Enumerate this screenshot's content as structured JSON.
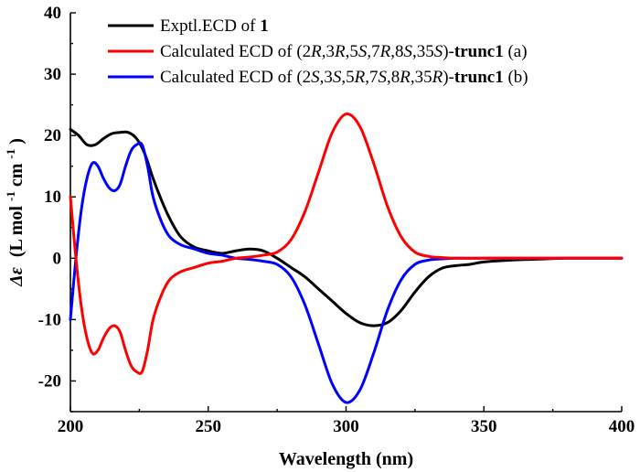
{
  "chart_data": {
    "type": "line",
    "title": "",
    "xlabel": "Wavelength (nm)",
    "ylabel": {
      "symbol": "Δε",
      "unit_prefix": "(L mol",
      "unit_sup1": "-1",
      "unit_mid": "cm",
      "unit_sup2": "-1",
      "unit_suffix": ")"
    },
    "xlim": [
      200,
      400
    ],
    "ylim": [
      -25,
      40
    ],
    "xticks": [
      200,
      250,
      300,
      350,
      400
    ],
    "yticks": [
      -20,
      -10,
      0,
      10,
      20,
      30,
      40
    ],
    "grid": false,
    "legend_position": "top-left",
    "series": [
      {
        "name": "Exptl.ECD of 1",
        "legend": {
          "text": "Exptl.ECD of ",
          "bold": "1"
        },
        "color": "#000000",
        "x": [
          200,
          203,
          206,
          209,
          212,
          215,
          218,
          221,
          224,
          227,
          230,
          233,
          236,
          240,
          245,
          250,
          255,
          260,
          265,
          270,
          275,
          280,
          285,
          290,
          295,
          300,
          305,
          310,
          315,
          320,
          325,
          330,
          335,
          340,
          345,
          350,
          360,
          370,
          380,
          390,
          400
        ],
        "y": [
          21,
          20,
          18.5,
          18.5,
          19.5,
          20.3,
          20.5,
          20.5,
          19.5,
          17,
          13,
          9.5,
          6.5,
          3.5,
          1.8,
          1.2,
          0.8,
          1.2,
          1.5,
          1.2,
          0,
          -1.5,
          -3,
          -5,
          -7,
          -9,
          -10.5,
          -11,
          -10.5,
          -8.5,
          -5.5,
          -3,
          -1.6,
          -1.2,
          -1,
          -0.6,
          -0.3,
          -0.15,
          0,
          0,
          0
        ]
      },
      {
        "name": "Calculated ECD of (2R,3R,5S,7R,8S,35S)-trunc1 (a)",
        "legend": {
          "text": "Calculated ECD of (2R,3R,5S,7R,8S,35S)-",
          "bold": "trunc1",
          "suffix": " (a)"
        },
        "color": "#ff0000",
        "x": [
          200,
          202,
          204,
          206,
          208,
          210,
          212,
          214,
          216,
          218,
          220,
          222,
          224,
          226,
          228,
          230,
          233,
          236,
          240,
          245,
          250,
          255,
          260,
          265,
          270,
          275,
          280,
          285,
          290,
          295,
          300,
          305,
          310,
          315,
          320,
          325,
          330,
          335,
          340,
          350,
          360,
          380,
          400
        ],
        "y": [
          10,
          0,
          -8,
          -13,
          -15.5,
          -15,
          -13,
          -11.5,
          -11,
          -12,
          -15,
          -17.5,
          -18.5,
          -18.5,
          -15,
          -10,
          -6,
          -3.5,
          -2.2,
          -1.5,
          -0.8,
          -0.5,
          0,
          0.2,
          0.5,
          1,
          3,
          7.5,
          14,
          20.5,
          23.5,
          21.5,
          15.5,
          8.5,
          3.5,
          1,
          0.3,
          0.1,
          0,
          0,
          0,
          0,
          0
        ]
      },
      {
        "name": "Calculated ECD of (2S,3S,5R,7S,8R,35R)-trunc1 (b)",
        "legend": {
          "text": "Calculated ECD of (2S,3S,5R,7S,8R,35R)-",
          "bold": "trunc1",
          "suffix": " (b)"
        },
        "color": "#0000ff",
        "x": [
          200,
          202,
          204,
          206,
          208,
          210,
          212,
          214,
          216,
          218,
          220,
          222,
          224,
          226,
          228,
          230,
          233,
          236,
          240,
          245,
          250,
          255,
          260,
          265,
          270,
          275,
          280,
          285,
          290,
          295,
          300,
          305,
          310,
          315,
          320,
          325,
          330,
          335,
          340,
          350,
          360,
          380,
          400
        ],
        "y": [
          -10,
          0,
          8,
          13,
          15.5,
          15,
          13,
          11.5,
          11,
          12,
          15,
          17.5,
          18.5,
          18.5,
          15,
          10,
          6,
          3.5,
          2.2,
          1.5,
          0.8,
          0.5,
          0,
          -0.2,
          -0.5,
          -1,
          -3,
          -7.5,
          -14,
          -20.5,
          -23.5,
          -21.5,
          -15.5,
          -8.5,
          -3.5,
          -1,
          -0.3,
          -0.1,
          0,
          0,
          0,
          0,
          0
        ]
      }
    ]
  }
}
